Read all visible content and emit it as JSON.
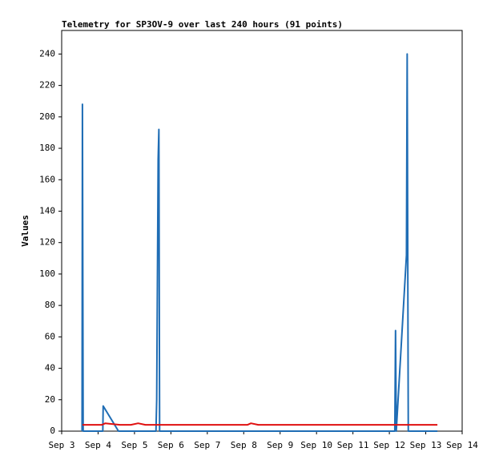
{
  "chart_data": {
    "type": "line",
    "title": "Telemetry for SP3OV-9 over last 240 hours (91 points)",
    "ylabel": "Values",
    "xlim": [
      3,
      14
    ],
    "xticks": [
      {
        "value": 3,
        "label": "Sep 3"
      },
      {
        "value": 4,
        "label": "Sep 4"
      },
      {
        "value": 5,
        "label": "Sep 5"
      },
      {
        "value": 6,
        "label": "Sep 6"
      },
      {
        "value": 7,
        "label": "Sep 7"
      },
      {
        "value": 8,
        "label": "Sep 8"
      },
      {
        "value": 9,
        "label": "Sep 9"
      },
      {
        "value": 10,
        "label": "Sep 10"
      },
      {
        "value": 11,
        "label": "Sep 11"
      },
      {
        "value": 12,
        "label": "Sep 12"
      },
      {
        "value": 13,
        "label": "Sep 13"
      },
      {
        "value": 14,
        "label": "Sep 14"
      }
    ],
    "ylim": [
      0,
      255
    ],
    "yticks": [
      0,
      20,
      40,
      60,
      80,
      100,
      120,
      140,
      160,
      180,
      200,
      220,
      240
    ],
    "series": [
      {
        "color": "#1f6db5",
        "x": [
          3.56,
          3.57,
          3.59,
          4.13,
          4.14,
          4.56,
          5.59,
          5.61,
          5.62,
          5.63,
          5.64,
          5.65,
          5.67,
          5.69,
          12.15,
          12.17,
          12.19,
          12.47,
          12.49,
          12.52,
          13.32
        ],
        "values": [
          0,
          208,
          0,
          0,
          16,
          0,
          0,
          20,
          58,
          97,
          135,
          173,
          192,
          0,
          0,
          64,
          0,
          112,
          240,
          0,
          0
        ]
      },
      {
        "color": "#e01010",
        "x": [
          3.57,
          4.1,
          4.2,
          4.6,
          4.9,
          5.1,
          5.3,
          8.1,
          8.2,
          8.4,
          13.32
        ],
        "values": [
          4,
          4,
          5,
          4,
          4,
          5,
          4,
          4,
          5,
          4,
          4
        ]
      }
    ]
  }
}
